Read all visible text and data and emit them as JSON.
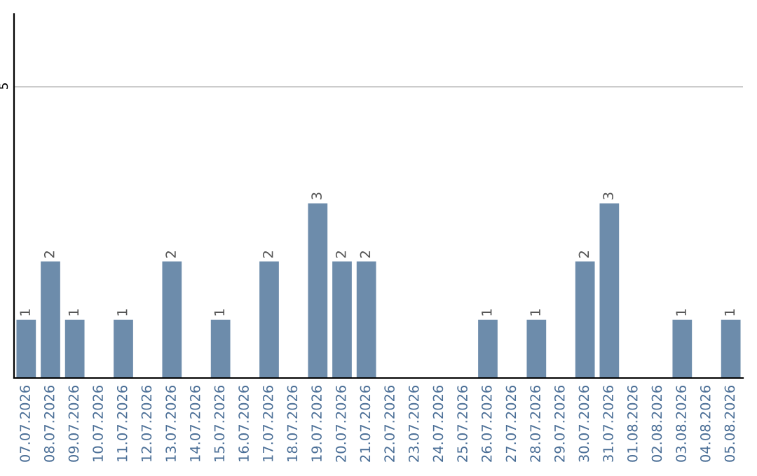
{
  "chart_data": {
    "type": "bar",
    "categories": [
      "07.07.2026",
      "08.07.2026",
      "09.07.2026",
      "10.07.2026",
      "11.07.2026",
      "12.07.2026",
      "13.07.2026",
      "14.07.2026",
      "15.07.2026",
      "16.07.2026",
      "17.07.2026",
      "18.07.2026",
      "19.07.2026",
      "20.07.2026",
      "21.07.2026",
      "22.07.2026",
      "23.07.2026",
      "24.07.2026",
      "25.07.2026",
      "26.07.2026",
      "27.07.2026",
      "28.07.2026",
      "29.07.2026",
      "30.07.2026",
      "31.07.2026",
      "01.08.2026",
      "02.08.2026",
      "03.08.2026",
      "04.08.2026",
      "05.08.2026"
    ],
    "values": [
      1,
      2,
      1,
      0,
      1,
      0,
      2,
      0,
      1,
      0,
      2,
      0,
      3,
      2,
      2,
      0,
      0,
      0,
      0,
      1,
      0,
      1,
      0,
      2,
      3,
      0,
      0,
      1,
      0,
      1
    ],
    "value_labels": [
      "1",
      "2",
      "1",
      null,
      "1",
      null,
      "2",
      null,
      "1",
      null,
      "2",
      null,
      "3",
      "2",
      "2",
      null,
      null,
      null,
      null,
      "1",
      null,
      "1",
      null,
      "2",
      "3",
      null,
      null,
      "1",
      null,
      "1"
    ],
    "color": "#6d8cab",
    "ylim": [
      0,
      6.25
    ],
    "yticks": [
      5
    ],
    "grid": "y"
  }
}
